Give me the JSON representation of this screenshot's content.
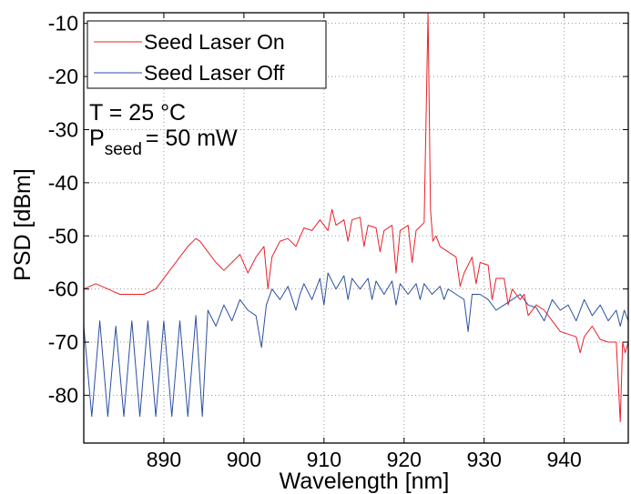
{
  "chart_data": {
    "type": "line",
    "title": "",
    "xlabel": "Wavelength [nm]",
    "ylabel": "PSD [dBm]",
    "xlim": [
      880,
      948
    ],
    "ylim": [
      -89,
      -8
    ],
    "xticks": [
      890,
      900,
      910,
      920,
      930,
      940
    ],
    "xtick_labels": [
      "890",
      "900",
      "910",
      "920",
      "930",
      "940"
    ],
    "yticks": [
      -10,
      -20,
      -30,
      -40,
      -50,
      -60,
      -70,
      -80
    ],
    "ytick_labels": [
      "-10",
      "-20",
      "-30",
      "-40",
      "-50",
      "-60",
      "-70",
      "-80"
    ],
    "grid": true,
    "legend_position": "top-left",
    "annotations": {
      "temperature": "T = 25 °C",
      "power_symbol": "P",
      "power_subscript": "seed",
      "power_value": "= 50 mW"
    },
    "series": [
      {
        "name": "Seed Laser On",
        "color": "#e8212a",
        "x": [
          880.0,
          881.5,
          883.0,
          884.5,
          886.0,
          887.5,
          889.0,
          890.5,
          892.0,
          893.0,
          894.0,
          894.5,
          895.5,
          896.5,
          897.5,
          898.5,
          899.5,
          900.5,
          901.5,
          902.5,
          903.0,
          903.5,
          904.5,
          905.5,
          906.5,
          907.5,
          908.5,
          909.5,
          910.5,
          911.0,
          911.5,
          912.5,
          913.0,
          913.5,
          914.5,
          915.0,
          915.5,
          916.5,
          917.0,
          917.5,
          918.5,
          919.0,
          919.5,
          920.5,
          921.0,
          921.5,
          922.5,
          923.0,
          923.3,
          923.6,
          924.0,
          924.5,
          925.5,
          926.5,
          927.0,
          927.5,
          928.5,
          929.0,
          929.5,
          930.5,
          931.0,
          931.5,
          932.5,
          933.0,
          933.5,
          934.5,
          935.0,
          935.5,
          936.5,
          937.5,
          938.5,
          939.5,
          940.5,
          941.5,
          942.0,
          942.5,
          943.5,
          944.5,
          945.5,
          946.5,
          947.0,
          947.3,
          947.6,
          948.0
        ],
        "y": [
          -60,
          -59,
          -60,
          -61,
          -61,
          -61,
          -60,
          -57,
          -54,
          -52,
          -50.5,
          -51,
          -53,
          -55,
          -56.5,
          -55,
          -53.5,
          -57,
          -54,
          -52,
          -60,
          -54,
          -51,
          -50.5,
          -52,
          -48.5,
          -49,
          -47,
          -49,
          -45,
          -48,
          -47,
          -51,
          -47,
          -46.5,
          -52,
          -48,
          -48.5,
          -53,
          -49,
          -48,
          -57,
          -49,
          -48,
          -55,
          -49,
          -47.5,
          -8,
          -45,
          -51,
          -50,
          -52,
          -53,
          -54,
          -59.5,
          -57,
          -54,
          -59,
          -55,
          -55.5,
          -62,
          -58,
          -58,
          -63,
          -60,
          -62,
          -61,
          -65,
          -63,
          -64,
          -66,
          -68,
          -68.5,
          -69,
          -72,
          -69,
          -67,
          -69.5,
          -70,
          -70,
          -85,
          -70,
          -72,
          -70
        ]
      },
      {
        "name": "Seed Laser Off",
        "color": "#2b4fa0",
        "x": [
          880.0,
          881.0,
          882.0,
          883.0,
          884.0,
          885.0,
          886.0,
          887.0,
          888.0,
          889.0,
          890.0,
          891.0,
          892.0,
          893.0,
          894.0,
          894.8,
          895.5,
          896.5,
          897.5,
          898.5,
          899.5,
          900.5,
          901.5,
          902.2,
          902.8,
          903.5,
          904.5,
          905.5,
          906.5,
          907.0,
          907.5,
          908.5,
          909.5,
          910.0,
          910.5,
          911.5,
          912.5,
          913.0,
          913.5,
          914.5,
          915.5,
          916.0,
          916.5,
          917.5,
          918.5,
          919.0,
          919.5,
          920.5,
          921.5,
          922.0,
          922.5,
          923.5,
          924.5,
          925.0,
          925.5,
          926.5,
          927.5,
          928.0,
          928.5,
          929.5,
          930.5,
          931.5,
          932.5,
          933.5,
          934.5,
          935.5,
          936.5,
          937.5,
          938.5,
          939.5,
          940.5,
          941.5,
          942.5,
          943.5,
          944.5,
          945.5,
          946.5,
          947.0,
          947.5,
          948.0
        ],
        "y": [
          -67,
          -84,
          -66,
          -84,
          -67,
          -84,
          -66,
          -84,
          -66,
          -84,
          -66,
          -84,
          -66,
          -84,
          -65,
          -84,
          -64,
          -67,
          -63,
          -66,
          -62,
          -64,
          -65,
          -71,
          -63,
          -60,
          -62,
          -59.5,
          -64,
          -61,
          -59,
          -62,
          -58,
          -63,
          -57,
          -60,
          -57.5,
          -62,
          -58,
          -60,
          -58,
          -62,
          -58.5,
          -61,
          -58.5,
          -63,
          -59,
          -61,
          -59,
          -62,
          -59,
          -61,
          -59.5,
          -62,
          -60,
          -61,
          -62,
          -68,
          -61,
          -61,
          -62,
          -64,
          -63,
          -62,
          -61,
          -63,
          -63.5,
          -66,
          -62,
          -64,
          -63,
          -66,
          -62,
          -65,
          -63,
          -66,
          -64,
          -67,
          -64,
          -66
        ]
      }
    ]
  }
}
